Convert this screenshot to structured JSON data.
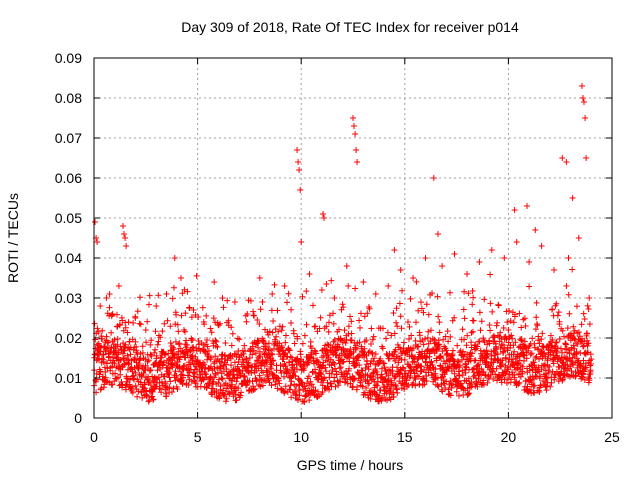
{
  "chart_data": {
    "type": "scatter",
    "title": "Day 309 of 2018, Rate Of TEC Index for receiver p014",
    "xlabel": "GPS time / hours",
    "ylabel": "ROTI / TECUs",
    "xlim": [
      0,
      25
    ],
    "ylim": [
      0,
      0.09
    ],
    "xticks": [
      0,
      5,
      10,
      15,
      20,
      25
    ],
    "xtick_labels": [
      "0",
      "5",
      "10",
      "15",
      "20",
      "25"
    ],
    "yticks": [
      0,
      0.01,
      0.02,
      0.03,
      0.04,
      0.05,
      0.06,
      0.07,
      0.08,
      0.09
    ],
    "ytick_labels": [
      "0",
      "0.01",
      "0.02",
      "0.03",
      "0.04",
      "0.05",
      "0.06",
      "0.07",
      "0.08",
      "0.09"
    ],
    "grid": true,
    "marker": "+",
    "color": "#ff0000",
    "data_range_hours": [
      0,
      24
    ],
    "series": [
      {
        "name": "ROTI",
        "note": "dense point cloud; typical values 0.005-0.025 TECUs",
        "x": [
          0.05,
          0.1,
          0.15,
          1.4,
          1.45,
          1.5,
          1.55,
          3.9,
          9.8,
          9.85,
          9.9,
          9.95,
          10.0,
          11.05,
          11.1,
          12.5,
          12.55,
          12.6,
          12.65,
          12.7,
          14.5,
          16.4,
          16.6,
          20.3,
          20.9,
          21.3,
          22.6,
          22.8,
          23.1,
          23.55,
          23.6,
          23.65,
          23.7,
          23.75,
          0.3,
          0.6,
          0.9,
          1.2,
          2.0,
          2.5,
          3.0,
          3.5,
          4.2,
          4.8,
          5.3,
          5.8,
          6.2,
          6.8,
          7.4,
          8.0,
          8.6,
          9.2,
          10.4,
          11.0,
          11.6,
          12.2,
          13.0,
          13.6,
          14.2,
          14.8,
          15.4,
          16.0,
          16.8,
          17.4,
          18.0,
          18.6,
          19.2,
          19.8,
          20.4,
          21.0,
          21.6,
          22.2,
          22.9,
          23.4,
          23.9
        ],
        "y": [
          0.049,
          0.045,
          0.044,
          0.048,
          0.046,
          0.045,
          0.043,
          0.04,
          0.067,
          0.064,
          0.062,
          0.057,
          0.044,
          0.051,
          0.05,
          0.075,
          0.073,
          0.071,
          0.067,
          0.064,
          0.042,
          0.06,
          0.046,
          0.052,
          0.053,
          0.047,
          0.065,
          0.064,
          0.055,
          0.083,
          0.08,
          0.079,
          0.075,
          0.065,
          0.028,
          0.03,
          0.026,
          0.033,
          0.025,
          0.022,
          0.028,
          0.031,
          0.035,
          0.027,
          0.024,
          0.034,
          0.03,
          0.029,
          0.026,
          0.035,
          0.031,
          0.033,
          0.036,
          0.032,
          0.03,
          0.038,
          0.034,
          0.031,
          0.033,
          0.037,
          0.035,
          0.04,
          0.038,
          0.041,
          0.036,
          0.039,
          0.042,
          0.04,
          0.044,
          0.039,
          0.043,
          0.037,
          0.04,
          0.045,
          0.03
        ]
      }
    ]
  }
}
